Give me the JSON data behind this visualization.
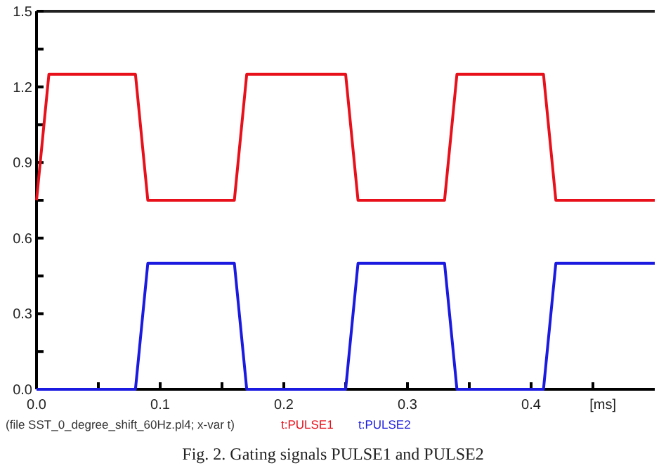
{
  "chart_data": {
    "type": "line",
    "xlabel": "[ms]",
    "annotations": [
      "(file SST_0_degree_shift_60Hz.pl4; x-var t)",
      "Fig. 2. Gating signals PULSE1 and PULSE2"
    ],
    "xlim": [
      0,
      0.5
    ],
    "xticks": [
      {
        "value": 0,
        "label": "0.0"
      },
      {
        "value": 0.05,
        "label": null
      },
      0.1,
      {
        "value": 0.15,
        "label": null
      },
      0.2,
      {
        "value": 0.25,
        "label": null
      },
      0.3,
      {
        "value": 0.35,
        "label": null
      },
      0.4,
      {
        "value": 0.45,
        "label": null
      }
    ],
    "ylim": [
      0,
      1.5
    ],
    "yticks": [
      {
        "value": 0,
        "label": "0.0"
      },
      {
        "value": 0.15,
        "label": null
      },
      0.3,
      {
        "value": 0.45,
        "label": null
      },
      0.6,
      {
        "value": 0.75,
        "label": null
      },
      0.9,
      {
        "value": 1.05,
        "label": null
      },
      1.2,
      {
        "value": 1.35,
        "label": null
      },
      1.5
    ],
    "grid": false,
    "legend": "bottom",
    "marker": "none",
    "line_style": "solid",
    "series": [
      {
        "name": "t:PULSE1",
        "color": "#e8101a",
        "x": [
          0,
          0.01,
          0.08,
          0.09,
          0.16,
          0.17,
          0.25,
          0.26,
          0.33,
          0.34,
          0.41,
          0.42,
          0.5
        ],
        "values": [
          0.75,
          1.25,
          1.25,
          0.75,
          0.75,
          1.25,
          1.25,
          0.75,
          0.75,
          1.25,
          1.25,
          0.75,
          0.75
        ]
      },
      {
        "name": "t:PULSE2",
        "color": "#1a1ae0",
        "x": [
          0,
          0.08,
          0.09,
          0.16,
          0.17,
          0.25,
          0.26,
          0.33,
          0.34,
          0.41,
          0.42,
          0.5
        ],
        "values": [
          0,
          0,
          0.5,
          0.5,
          0,
          0,
          0.5,
          0.5,
          0,
          0,
          0.5,
          0.5
        ]
      }
    ]
  }
}
